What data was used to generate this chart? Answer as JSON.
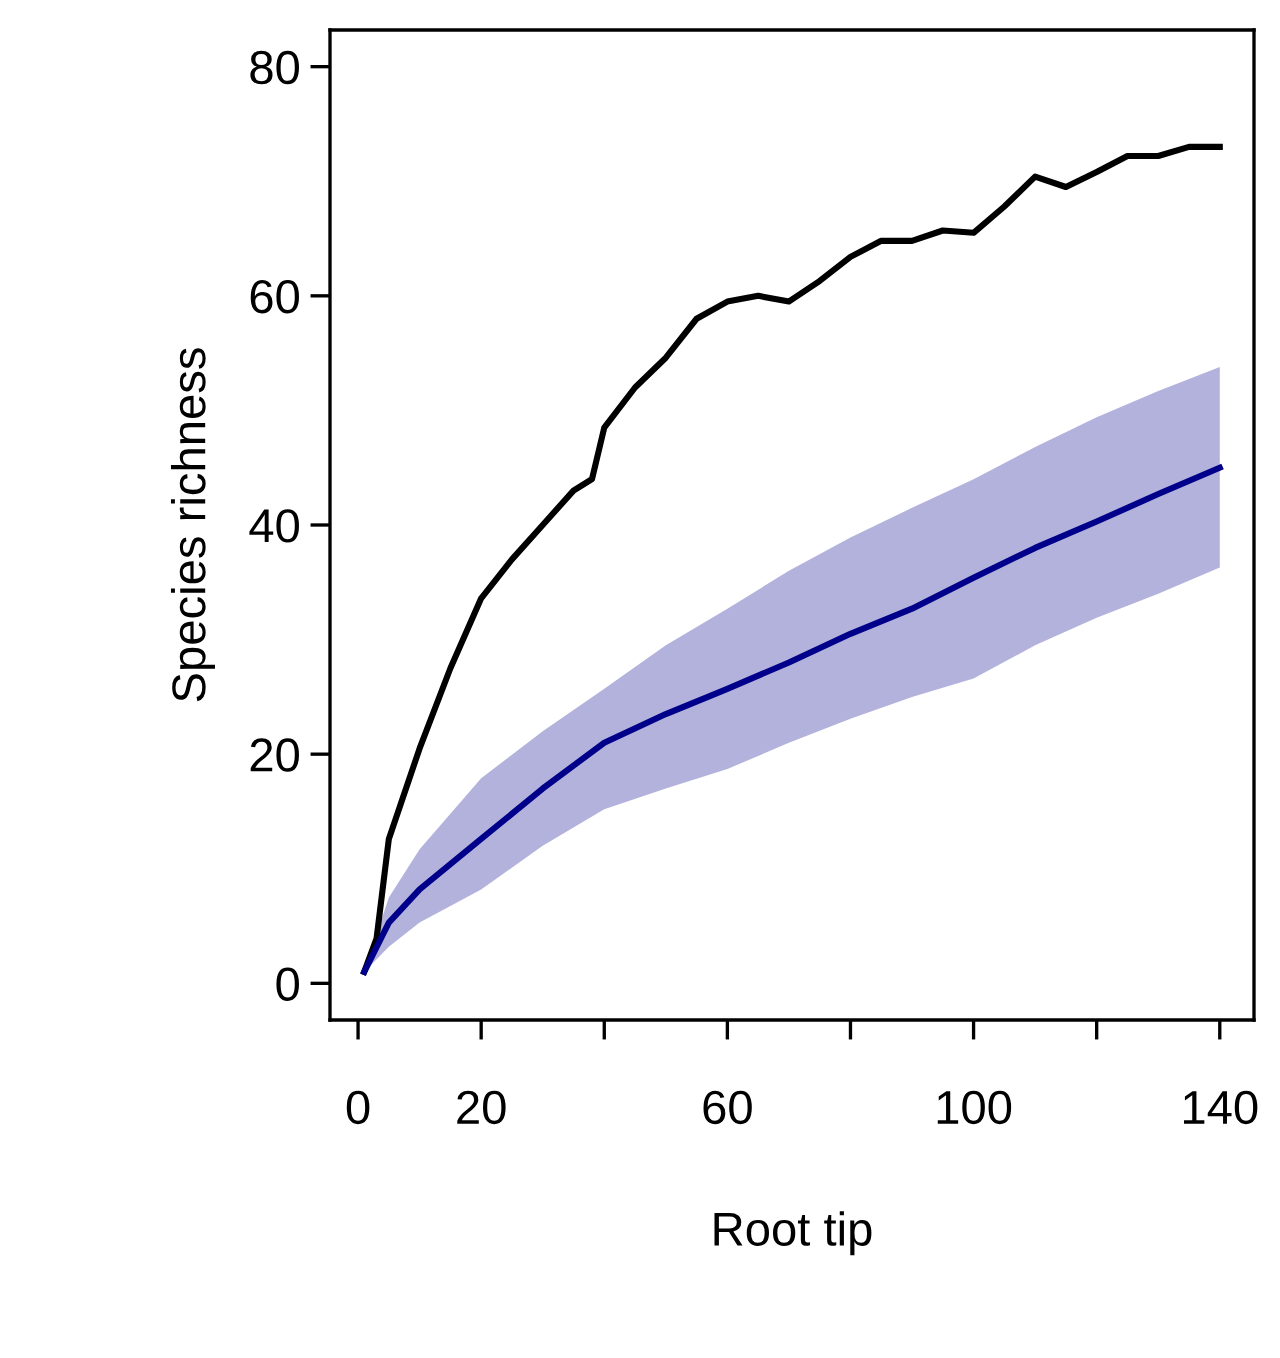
{
  "chart_data": {
    "type": "line",
    "xlabel": "Root tip",
    "ylabel": "Species richness",
    "xlim": [
      -4.56,
      145.56
    ],
    "ylim": [
      -3.2,
      83.2
    ],
    "xticks": [
      0,
      20,
      {
        "value": 40,
        "label": null
      },
      60,
      {
        "value": 80,
        "label": null
      },
      100,
      {
        "value": 120,
        "label": null
      },
      140
    ],
    "yticks": [
      0,
      20,
      40,
      60,
      80
    ],
    "grid": false,
    "marker": "none",
    "line_style": "solid",
    "series": [
      {
        "color": "#000000",
        "x": [
          1,
          3,
          5,
          10,
          15,
          20,
          25,
          30,
          35,
          38,
          40,
          45,
          50,
          55,
          60,
          65,
          70,
          75,
          80,
          85,
          90,
          95,
          100,
          105,
          110,
          115,
          120,
          125,
          130,
          135,
          140
        ],
        "values": [
          1,
          3.9,
          12.6,
          20.5,
          27.5,
          33.6,
          37,
          40,
          43,
          44,
          48.5,
          52,
          54.6,
          58,
          59.5,
          60,
          59.5,
          61.3,
          63.4,
          64.8,
          64.8,
          65.7,
          65.5,
          67.8,
          70.4,
          69.5,
          70.8,
          72.2,
          72.2,
          73,
          73
        ]
      },
      {
        "color": "#00008b",
        "x": [
          1,
          5,
          10,
          20,
          30,
          40,
          50,
          60,
          70,
          80,
          90,
          100,
          110,
          120,
          130,
          140
        ],
        "values": [
          1,
          5.3,
          8.2,
          12.6,
          17,
          21,
          23.5,
          25.7,
          28,
          30.5,
          32.7,
          35.4,
          38,
          40.3,
          42.7,
          45
        ],
        "upper": [
          1,
          7.5,
          11.7,
          17.9,
          22,
          25.7,
          29.5,
          32.7,
          36,
          38.9,
          41.5,
          44,
          46.8,
          49.4,
          51.7,
          53.8
        ],
        "lower": [
          1,
          3.2,
          5.3,
          8.2,
          12,
          15.2,
          17,
          18.7,
          21,
          23.1,
          25,
          26.6,
          29.5,
          31.9,
          34,
          36.3
        ]
      }
    ]
  }
}
